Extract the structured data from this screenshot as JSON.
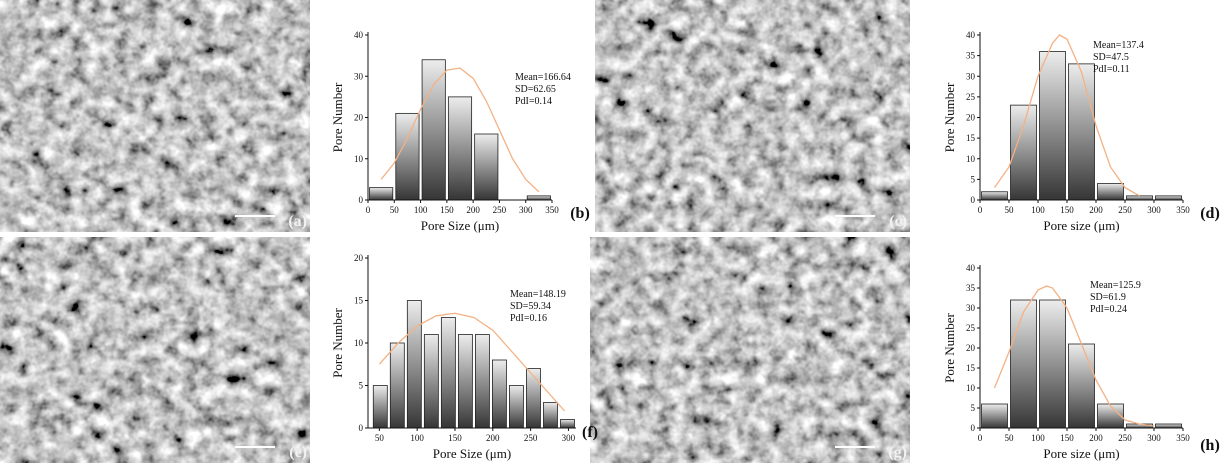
{
  "images": [
    {
      "label": "(a)"
    },
    {
      "label": "(c)"
    },
    {
      "label": "(e)"
    },
    {
      "label": "(g)"
    }
  ],
  "chart_data": [
    {
      "type": "histogram",
      "panel_label": "(b)",
      "x_label": "Pore Size (μm)",
      "y_label": "Pore Number",
      "annotations": [
        "Mean=166.64",
        "SD=62.65",
        "PdI=0.14"
      ],
      "bins": [
        0,
        50,
        100,
        150,
        200,
        250,
        300,
        350
      ],
      "values": [
        3,
        21,
        34,
        25,
        16,
        0,
        1
      ],
      "xlim": [
        0,
        350
      ],
      "xticks": [
        0,
        50,
        100,
        150,
        200,
        250,
        300,
        350
      ],
      "ylim": [
        0,
        40
      ],
      "yticks": [
        0,
        10,
        20,
        30,
        40
      ],
      "fit": {
        "color": "#f4b183",
        "x": [
          25,
          50,
          75,
          100,
          125,
          150,
          175,
          200,
          225,
          250,
          275,
          300,
          325
        ],
        "y": [
          5,
          9,
          15,
          22,
          28,
          31.5,
          32,
          29.5,
          24,
          17,
          10,
          5,
          2
        ]
      }
    },
    {
      "type": "histogram",
      "panel_label": "(d)",
      "x_label": "Pore size (μm)",
      "y_label": "Pore Number",
      "annotations": [
        "Mean=137.4",
        "SD=47.5",
        "PdI=0.11"
      ],
      "bins": [
        0,
        50,
        100,
        150,
        200,
        250,
        300,
        350
      ],
      "values": [
        2,
        23,
        36,
        33,
        4,
        1,
        1
      ],
      "xlim": [
        0,
        350
      ],
      "xticks": [
        0,
        50,
        100,
        150,
        200,
        250,
        300,
        350
      ],
      "ylim": [
        0,
        40
      ],
      "yticks": [
        0,
        5,
        10,
        15,
        20,
        25,
        30,
        35,
        40
      ],
      "fit": {
        "color": "#f4b183",
        "x": [
          25,
          50,
          75,
          100,
          125,
          137,
          150,
          175,
          200,
          225,
          250,
          275
        ],
        "y": [
          3,
          8,
          18,
          30,
          38,
          40,
          39,
          31,
          18,
          8,
          3,
          1
        ]
      }
    },
    {
      "type": "histogram",
      "panel_label": "(f)",
      "x_label": "Pore Size (μm)",
      "y_label": "Pore Number",
      "annotations": [
        "Mean=148.19",
        "SD=59.34",
        "PdI=0.16"
      ],
      "bins": [
        40,
        62.5,
        85,
        107.5,
        130,
        152.5,
        175,
        197.5,
        220,
        242.5,
        265,
        287.5,
        310
      ],
      "values": [
        5,
        10,
        15,
        11,
        13,
        11,
        11,
        8,
        5,
        7,
        3,
        1
      ],
      "xlim": [
        35,
        310
      ],
      "xticks": [
        50,
        100,
        150,
        200,
        250,
        300
      ],
      "ylim": [
        0,
        20
      ],
      "yticks": [
        0,
        5,
        10,
        15,
        20
      ],
      "fit": {
        "color": "#f4b183",
        "x": [
          50,
          75,
          100,
          125,
          150,
          175,
          200,
          225,
          250,
          275,
          295
        ],
        "y": [
          7.5,
          10,
          12,
          13.2,
          13.5,
          13,
          11.5,
          9,
          6.5,
          4,
          2
        ]
      }
    },
    {
      "type": "histogram",
      "panel_label": "(h)",
      "x_label": "Pore size (μm)",
      "y_label": "Pore Number",
      "annotations": [
        "Mean=125.9",
        "SD=61.9",
        "PdI=0.24"
      ],
      "bins": [
        0,
        50,
        100,
        150,
        200,
        250,
        300,
        350
      ],
      "values": [
        6,
        32,
        32,
        21,
        6,
        1,
        1
      ],
      "xlim": [
        0,
        350
      ],
      "xticks": [
        0,
        50,
        100,
        150,
        200,
        250,
        300,
        350
      ],
      "ylim": [
        0,
        40
      ],
      "yticks": [
        0,
        5,
        10,
        15,
        20,
        25,
        30,
        35,
        40
      ],
      "fit": {
        "color": "#f4b183",
        "x": [
          25,
          50,
          75,
          100,
          115,
          125,
          150,
          175,
          200,
          225,
          250,
          275,
          300
        ],
        "y": [
          10,
          19,
          29,
          34.5,
          35.5,
          35,
          30,
          21,
          12,
          5.5,
          2,
          1,
          0.5
        ]
      }
    }
  ]
}
